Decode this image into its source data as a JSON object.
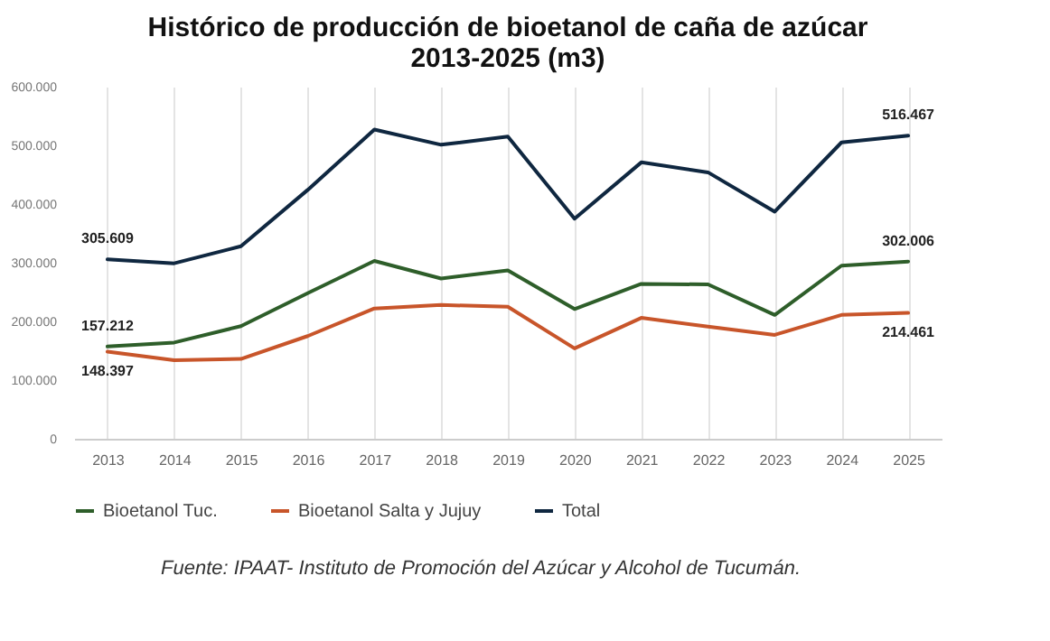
{
  "chart_data": {
    "type": "line",
    "title": "Histórico de producción de bioetanol de caña de azúcar 2013-2025 (m3)",
    "categories": [
      "2013",
      "2014",
      "2015",
      "2016",
      "2017",
      "2018",
      "2019",
      "2020",
      "2021",
      "2022",
      "2023",
      "2024",
      "2025"
    ],
    "series": [
      {
        "name": "Bioetanol Tuc.",
        "color": "#2e5e2a",
        "values": [
          157212,
          164000,
          192000,
          248000,
          303000,
          273000,
          287000,
          221000,
          264000,
          263000,
          211000,
          295000,
          302006
        ],
        "value_labels": [
          "157.212",
          null,
          null,
          null,
          null,
          null,
          null,
          null,
          null,
          null,
          null,
          null,
          "302.006"
        ]
      },
      {
        "name": "Bioetanol Salta y Jujuy",
        "color": "#c8552a",
        "values": [
          148397,
          134000,
          136000,
          175000,
          222000,
          228000,
          225000,
          154000,
          206000,
          191000,
          177000,
          211000,
          214461
        ],
        "value_labels": [
          "148.397",
          null,
          null,
          null,
          null,
          null,
          null,
          null,
          null,
          null,
          null,
          null,
          "214.461"
        ]
      },
      {
        "name": "Total",
        "color": "#0f2740",
        "values": [
          305609,
          299000,
          328000,
          424000,
          527000,
          501000,
          515000,
          375000,
          471000,
          454000,
          387000,
          505000,
          516467
        ],
        "value_labels": [
          "305.609",
          null,
          null,
          null,
          null,
          null,
          null,
          null,
          null,
          null,
          null,
          null,
          "516.467"
        ]
      }
    ],
    "ylim": [
      0,
      600000
    ],
    "yticks": [
      {
        "value": 0,
        "label": "0"
      },
      {
        "value": 100000,
        "label": "100.000"
      },
      {
        "value": 200000,
        "label": "200.000"
      },
      {
        "value": 300000,
        "label": "300.000"
      },
      {
        "value": 400000,
        "label": "400.000"
      },
      {
        "value": 500000,
        "label": "500.000"
      },
      {
        "value": 600000,
        "label": "600.000"
      }
    ],
    "grid": "x",
    "legend": "bottom",
    "marker": "none",
    "line_style": "solid",
    "annotations": [
      "Fuente: IPAAT- Instituto de Promoción del Azúcar y Alcohol de Tucumán."
    ]
  }
}
